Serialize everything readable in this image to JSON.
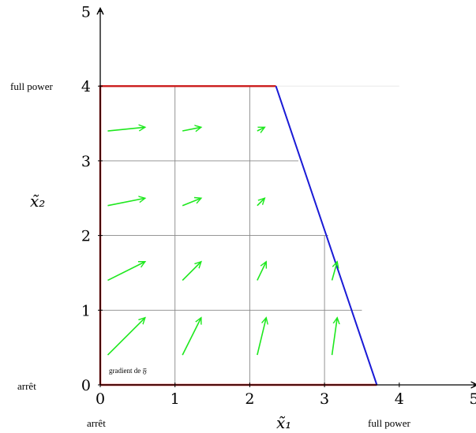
{
  "diagram": {
    "x_axis": {
      "ticks": [
        "0",
        "1",
        "2",
        "3",
        "4",
        "5"
      ],
      "label": "x̃₁",
      "min": 0,
      "max": 5,
      "left_label": "arrêt",
      "right_label": "full power"
    },
    "y_axis": {
      "ticks": [
        "0",
        "1",
        "2",
        "3",
        "4",
        "5"
      ],
      "label": "x̃₂",
      "min": 0,
      "max": 5,
      "bottom_label": "arrêt",
      "top_label": "full power"
    },
    "grid_lines_x": [
      1,
      2,
      3
    ],
    "grid_lines_y": [
      1,
      2,
      3
    ],
    "red_boundary": [
      [
        0,
        0
      ],
      [
        0,
        4
      ],
      [
        2.35,
        4
      ]
    ],
    "red_floor": [
      [
        0,
        0
      ],
      [
        3.7,
        0
      ]
    ],
    "blue_line": [
      [
        2.35,
        4
      ],
      [
        3.7,
        0
      ]
    ],
    "gradient_label": "gradient de 𝔉",
    "colors": {
      "red": "#cc1f1f",
      "blue": "#1a1ad6",
      "green": "#1ee81e",
      "grid": "#888888"
    },
    "arrows": [
      {
        "from": [
          0.1,
          3.4
        ],
        "to": [
          0.6,
          3.45
        ]
      },
      {
        "from": [
          1.1,
          3.4
        ],
        "to": [
          1.35,
          3.45
        ]
      },
      {
        "from": [
          2.1,
          3.4
        ],
        "to": [
          2.2,
          3.45
        ]
      },
      {
        "from": [
          0.1,
          2.4
        ],
        "to": [
          0.6,
          2.5
        ]
      },
      {
        "from": [
          1.1,
          2.4
        ],
        "to": [
          1.35,
          2.5
        ]
      },
      {
        "from": [
          2.1,
          2.4
        ],
        "to": [
          2.2,
          2.5
        ]
      },
      {
        "from": [
          0.1,
          1.4
        ],
        "to": [
          0.6,
          1.65
        ]
      },
      {
        "from": [
          1.1,
          1.4
        ],
        "to": [
          1.35,
          1.65
        ]
      },
      {
        "from": [
          2.1,
          1.4
        ],
        "to": [
          2.22,
          1.65
        ]
      },
      {
        "from": [
          3.1,
          1.4
        ],
        "to": [
          3.17,
          1.65
        ]
      },
      {
        "from": [
          0.1,
          0.4
        ],
        "to": [
          0.6,
          0.9
        ]
      },
      {
        "from": [
          1.1,
          0.4
        ],
        "to": [
          1.35,
          0.9
        ]
      },
      {
        "from": [
          2.1,
          0.4
        ],
        "to": [
          2.22,
          0.9
        ]
      },
      {
        "from": [
          3.1,
          0.4
        ],
        "to": [
          3.17,
          0.9
        ]
      }
    ]
  }
}
